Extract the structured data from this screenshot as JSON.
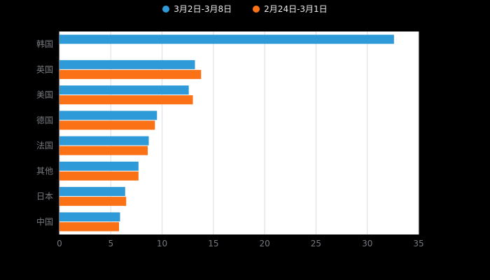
{
  "chart_data": {
    "type": "bar",
    "orientation": "horizontal",
    "title": "",
    "xlabel": "",
    "ylabel": "",
    "categories": [
      "韩国",
      "英国",
      "美国",
      "德国",
      "法国",
      "其他",
      "日本",
      "中国"
    ],
    "series": [
      {
        "name": "3月2日-3月8日",
        "color": "#2E9AD8",
        "values": [
          32.6,
          13.2,
          12.6,
          9.5,
          8.7,
          7.7,
          6.4,
          5.9
        ]
      },
      {
        "name": "2月24日-3月1日",
        "color": "#FB7216",
        "values": [
          0,
          13.8,
          13.0,
          9.3,
          8.6,
          7.7,
          6.5,
          5.8
        ]
      }
    ],
    "xlim": [
      0,
      35
    ],
    "xticks": [
      0,
      5,
      10,
      15,
      20,
      25,
      30,
      35
    ],
    "grid": true,
    "legend_position": "top",
    "plot_background": "#ffffff",
    "page_background": "#000000",
    "label_color": "#76797F",
    "gridline_color": "#D9DDE4"
  }
}
